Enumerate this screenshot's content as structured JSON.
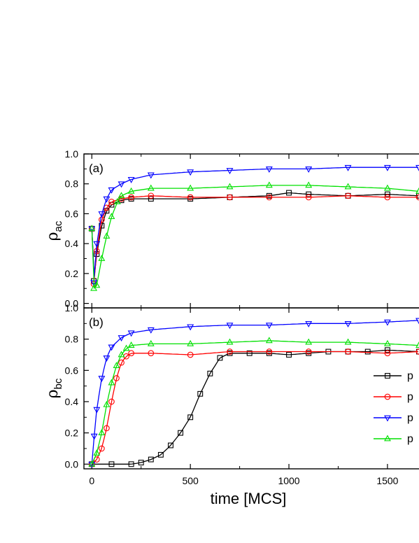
{
  "figure": {
    "xlabel": "time [MCS]",
    "x_ticks": [
      0,
      500,
      1000,
      1500
    ],
    "xlim": [
      -40,
      1660
    ],
    "colors": {
      "series1": "#000000",
      "series2": "#ff0000",
      "series3": "#0000ff",
      "series4": "#00e000"
    },
    "legend": {
      "placement": "right",
      "labels": [
        "p",
        "p",
        "p",
        "p"
      ]
    }
  },
  "chart_data": [
    {
      "type": "line",
      "panel_label": "(a)",
      "ylabel_main": "ρ",
      "ylabel_sub": "ac",
      "ylim": [
        -0.03,
        1.0
      ],
      "y_ticks": [
        "0.0",
        "0.2",
        "0.4",
        "0.6",
        "0.8",
        "1.0"
      ],
      "series": [
        {
          "color": "#000000",
          "marker": "square",
          "points": [
            [
              0,
              0.5
            ],
            [
              10,
              0.15
            ],
            [
              25,
              0.33
            ],
            [
              50,
              0.52
            ],
            [
              75,
              0.62
            ],
            [
              100,
              0.66
            ],
            [
              150,
              0.69
            ],
            [
              200,
              0.7
            ],
            [
              300,
              0.7
            ],
            [
              500,
              0.7
            ],
            [
              700,
              0.71
            ],
            [
              900,
              0.72
            ],
            [
              1000,
              0.74
            ],
            [
              1100,
              0.73
            ],
            [
              1300,
              0.72
            ],
            [
              1500,
              0.73
            ],
            [
              1660,
              0.72
            ]
          ]
        },
        {
          "color": "#ff0000",
          "marker": "circle",
          "points": [
            [
              0,
              0.5
            ],
            [
              10,
              0.13
            ],
            [
              25,
              0.35
            ],
            [
              50,
              0.56
            ],
            [
              75,
              0.64
            ],
            [
              100,
              0.68
            ],
            [
              150,
              0.7
            ],
            [
              200,
              0.71
            ],
            [
              300,
              0.72
            ],
            [
              500,
              0.71
            ],
            [
              700,
              0.71
            ],
            [
              900,
              0.71
            ],
            [
              1100,
              0.71
            ],
            [
              1300,
              0.72
            ],
            [
              1500,
              0.71
            ],
            [
              1660,
              0.71
            ]
          ]
        },
        {
          "color": "#0000ff",
          "marker": "triangle-down",
          "points": [
            [
              0,
              0.5
            ],
            [
              10,
              0.14
            ],
            [
              25,
              0.4
            ],
            [
              50,
              0.6
            ],
            [
              75,
              0.7
            ],
            [
              100,
              0.76
            ],
            [
              150,
              0.8
            ],
            [
              200,
              0.83
            ],
            [
              300,
              0.86
            ],
            [
              500,
              0.88
            ],
            [
              700,
              0.89
            ],
            [
              900,
              0.9
            ],
            [
              1100,
              0.9
            ],
            [
              1300,
              0.91
            ],
            [
              1500,
              0.91
            ],
            [
              1660,
              0.91
            ]
          ]
        },
        {
          "color": "#00e000",
          "marker": "triangle-up",
          "points": [
            [
              0,
              0.5
            ],
            [
              10,
              0.1
            ],
            [
              25,
              0.12
            ],
            [
              50,
              0.3
            ],
            [
              75,
              0.45
            ],
            [
              100,
              0.58
            ],
            [
              130,
              0.68
            ],
            [
              150,
              0.72
            ],
            [
              200,
              0.75
            ],
            [
              300,
              0.77
            ],
            [
              500,
              0.77
            ],
            [
              700,
              0.78
            ],
            [
              900,
              0.79
            ],
            [
              1100,
              0.79
            ],
            [
              1300,
              0.78
            ],
            [
              1500,
              0.77
            ],
            [
              1660,
              0.75
            ]
          ]
        }
      ]
    },
    {
      "type": "line",
      "panel_label": "(b)",
      "ylabel_main": "ρ",
      "ylabel_sub": "bc",
      "ylim": [
        -0.03,
        1.0
      ],
      "y_ticks": [
        "0.0",
        "0.2",
        "0.4",
        "0.6",
        "0.8",
        "1.0"
      ],
      "series": [
        {
          "color": "#000000",
          "marker": "square",
          "points": [
            [
              0,
              0.0
            ],
            [
              100,
              0.0
            ],
            [
              200,
              0.0
            ],
            [
              250,
              0.01
            ],
            [
              300,
              0.03
            ],
            [
              350,
              0.06
            ],
            [
              400,
              0.12
            ],
            [
              450,
              0.2
            ],
            [
              500,
              0.3
            ],
            [
              550,
              0.45
            ],
            [
              600,
              0.58
            ],
            [
              650,
              0.68
            ],
            [
              700,
              0.71
            ],
            [
              800,
              0.71
            ],
            [
              900,
              0.71
            ],
            [
              1000,
              0.7
            ],
            [
              1100,
              0.71
            ],
            [
              1200,
              0.72
            ],
            [
              1300,
              0.72
            ],
            [
              1400,
              0.72
            ],
            [
              1500,
              0.73
            ],
            [
              1660,
              0.72
            ]
          ]
        },
        {
          "color": "#ff0000",
          "marker": "circle",
          "points": [
            [
              0,
              0.0
            ],
            [
              25,
              0.03
            ],
            [
              50,
              0.1
            ],
            [
              75,
              0.23
            ],
            [
              100,
              0.4
            ],
            [
              125,
              0.55
            ],
            [
              150,
              0.65
            ],
            [
              175,
              0.69
            ],
            [
              200,
              0.71
            ],
            [
              300,
              0.71
            ],
            [
              500,
              0.7
            ],
            [
              700,
              0.72
            ],
            [
              900,
              0.72
            ],
            [
              1100,
              0.72
            ],
            [
              1300,
              0.72
            ],
            [
              1500,
              0.71
            ],
            [
              1660,
              0.72
            ]
          ]
        },
        {
          "color": "#0000ff",
          "marker": "triangle-down",
          "points": [
            [
              0,
              0.0
            ],
            [
              12,
              0.18
            ],
            [
              25,
              0.35
            ],
            [
              50,
              0.55
            ],
            [
              75,
              0.68
            ],
            [
              100,
              0.75
            ],
            [
              150,
              0.81
            ],
            [
              200,
              0.84
            ],
            [
              300,
              0.86
            ],
            [
              500,
              0.88
            ],
            [
              700,
              0.89
            ],
            [
              900,
              0.89
            ],
            [
              1100,
              0.9
            ],
            [
              1300,
              0.9
            ],
            [
              1500,
              0.91
            ],
            [
              1660,
              0.92
            ]
          ]
        },
        {
          "color": "#00e000",
          "marker": "triangle-up",
          "points": [
            [
              0,
              0.0
            ],
            [
              25,
              0.07
            ],
            [
              50,
              0.2
            ],
            [
              75,
              0.38
            ],
            [
              100,
              0.52
            ],
            [
              125,
              0.63
            ],
            [
              150,
              0.7
            ],
            [
              175,
              0.74
            ],
            [
              200,
              0.76
            ],
            [
              300,
              0.77
            ],
            [
              500,
              0.77
            ],
            [
              700,
              0.78
            ],
            [
              900,
              0.79
            ],
            [
              1100,
              0.78
            ],
            [
              1300,
              0.78
            ],
            [
              1500,
              0.77
            ],
            [
              1660,
              0.76
            ]
          ]
        }
      ]
    }
  ]
}
